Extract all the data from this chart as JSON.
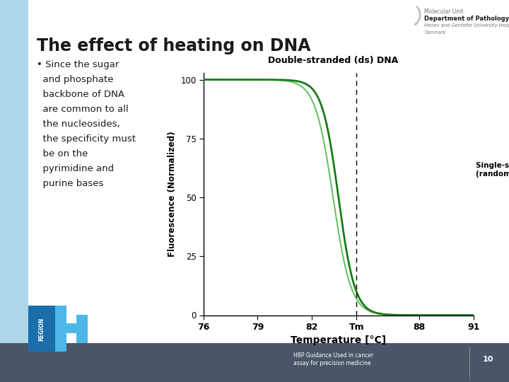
{
  "title": "The effect of heating on DNA",
  "bullet_lines": [
    "• Since the sugar",
    "  and phosphate",
    "  backbone of DNA",
    "  are common to all",
    "  the nucleosides,",
    "  the specificity must",
    "  be on the",
    "  pyrimidine and",
    "  purine bases"
  ],
  "x_label": "Temperature [°C]",
  "y_label": "Fluorescence (Normalized)",
  "x_ticks": [
    76,
    79,
    82,
    84.5,
    88,
    91
  ],
  "x_tick_labels": [
    "76",
    "79",
    "82",
    "Tm",
    "88",
    "91"
  ],
  "y_ticks": [
    0,
    25,
    50,
    75,
    100
  ],
  "x_min": 76,
  "x_max": 91,
  "y_min": 0,
  "y_max": 100,
  "tm": 84.5,
  "curve_color_dark": "#1a7a1a",
  "curve_color_light": "#55bb55",
  "curve_color_black": "#111111",
  "ds_label": "Double-stranded (ds) DNA",
  "ss_label": "Single-stranded DNA\n(random coils)",
  "footer_text": "HBP Guidance Used In cancer\nassay for precision medicine",
  "footer_page": "10",
  "hospital_line1": "Molecular Unit",
  "hospital_line2": "Department of Pathology",
  "hospital_line3": "Herlev and Gentofte University Hospital",
  "hospital_line4": "Denmark",
  "left_bar_color": "#add8e8",
  "bottom_bar_color": "#4a5568",
  "region_blue_dark": "#1a6fab",
  "region_blue_light": "#4db8e8",
  "title_color": "#1a1a1a",
  "text_color": "#1a1a1a",
  "slide_bg": "#ffffff"
}
